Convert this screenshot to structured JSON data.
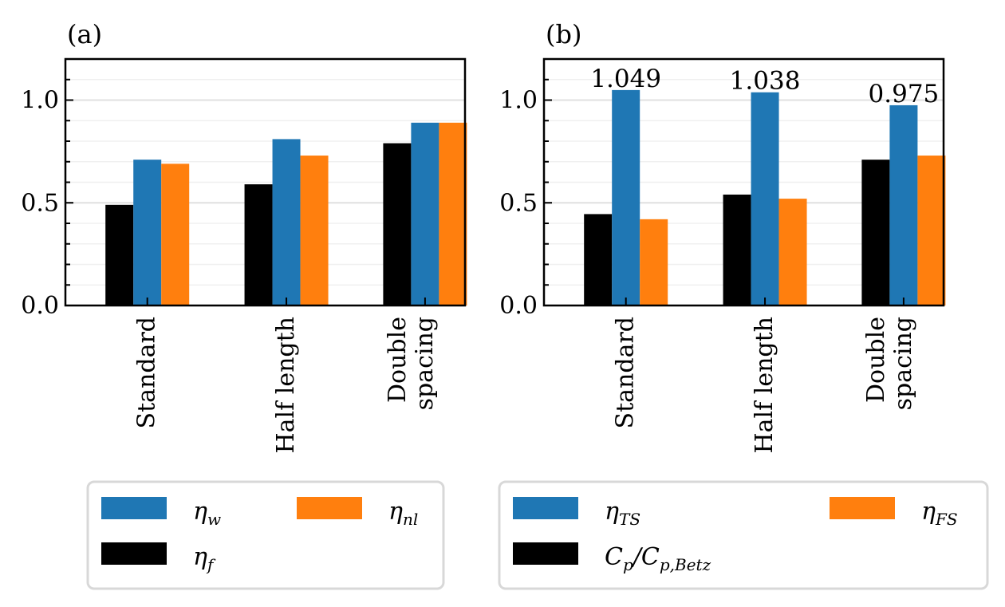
{
  "chart_data": [
    {
      "type": "bar",
      "panel_label": "(a)",
      "categories": [
        [
          "Standard"
        ],
        [
          "Half length"
        ],
        [
          "Double",
          "spacing"
        ]
      ],
      "series": [
        {
          "name": "η_f",
          "symbol": "η",
          "sub": "f",
          "color": "#000000",
          "values": [
            0.49,
            0.59,
            0.79
          ]
        },
        {
          "name": "η_w",
          "symbol": "η",
          "sub": "w",
          "color": "#1f77b4",
          "values": [
            0.71,
            0.81,
            0.89
          ]
        },
        {
          "name": "η_nl",
          "symbol": "η",
          "sub": "nl",
          "color": "#ff7f0e",
          "values": [
            0.69,
            0.73,
            0.89
          ]
        }
      ],
      "data_labels": [],
      "yticks": [
        "0.0",
        "0.5",
        "1.0"
      ],
      "ytick_values": [
        0.0,
        0.5,
        1.0
      ],
      "ylim": [
        0,
        1.2
      ],
      "legend_order": [
        1,
        2,
        0
      ]
    },
    {
      "type": "bar",
      "panel_label": "(b)",
      "categories": [
        [
          "Standard"
        ],
        [
          "Half length"
        ],
        [
          "Double",
          "spacing"
        ]
      ],
      "series": [
        {
          "name": "C_p/C_p,Betz",
          "symbol": "C",
          "sub": "p",
          "extra": "/C",
          "sub2": "p,Betz",
          "color": "#000000",
          "values": [
            0.445,
            0.54,
            0.71
          ]
        },
        {
          "name": "η_TS",
          "symbol": "η",
          "sub": "TS",
          "color": "#1f77b4",
          "values": [
            1.049,
            1.038,
            0.975
          ]
        },
        {
          "name": "η_FS",
          "symbol": "η",
          "sub": "FS",
          "color": "#ff7f0e",
          "values": [
            0.42,
            0.52,
            0.73
          ]
        }
      ],
      "data_labels": [
        "1.049",
        "1.038",
        "0.975"
      ],
      "yticks": [
        "0.0",
        "0.5",
        "1.0"
      ],
      "ytick_values": [
        0.0,
        0.5,
        1.0
      ],
      "ylim": [
        0,
        1.2
      ],
      "legend_order": [
        1,
        2,
        0
      ]
    }
  ]
}
